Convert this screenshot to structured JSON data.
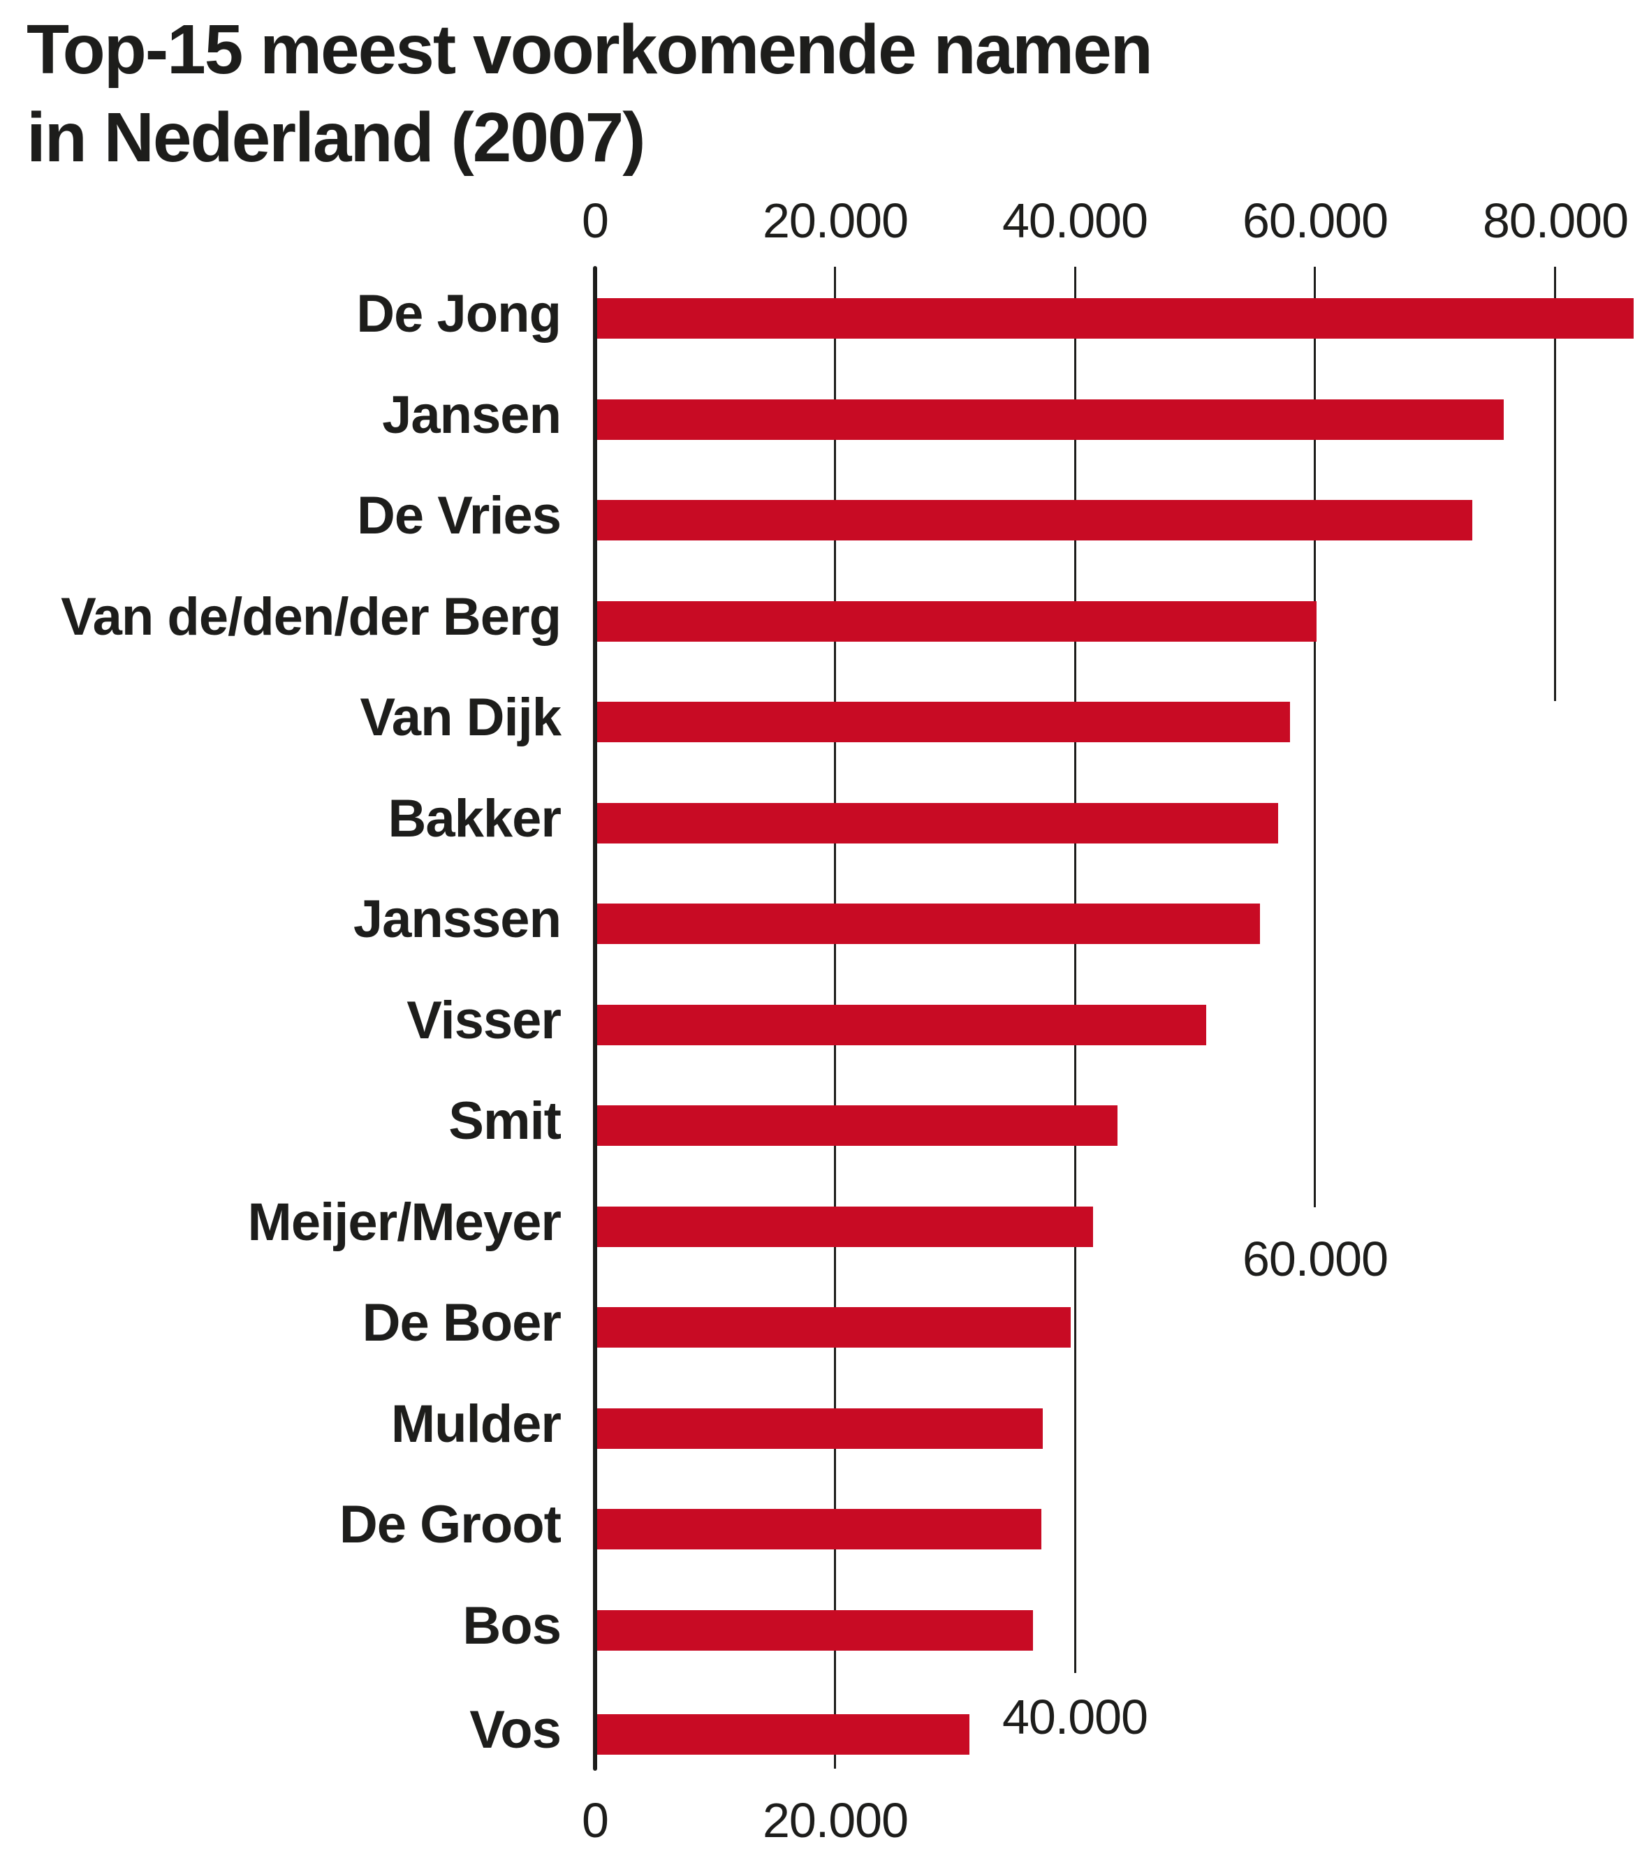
{
  "title": {
    "line1": "Top-15 meest voorkomende namen",
    "line2": "in Nederland (2007)"
  },
  "colors": {
    "bar": "#c80b24",
    "text": "#1d1d1b",
    "grid": "#1d1d1b"
  },
  "axis": {
    "top_ticks": [
      "0",
      "20.000",
      "40.000",
      "60.000",
      "80.000"
    ],
    "inline_ticks": {
      "t60": "60.000",
      "t40": "40.000"
    },
    "bottom_ticks": [
      "0",
      "20.000"
    ]
  },
  "chart_data": {
    "type": "bar",
    "orientation": "horizontal",
    "title": "Top-15 meest voorkomende namen in Nederland (2007)",
    "xlabel": "",
    "ylabel": "",
    "xlim": [
      0,
      87000
    ],
    "xticks": [
      0,
      20000,
      40000,
      60000,
      80000
    ],
    "xtick_labels": [
      "0",
      "20.000",
      "40.000",
      "60.000",
      "80.000"
    ],
    "grid": true,
    "legend": null,
    "categories": [
      "De Jong",
      "Jansen",
      "De Vries",
      "Van de/den/der Berg",
      "Van Dijk",
      "Bakker",
      "Janssen",
      "Visser",
      "Smit",
      "Meijer/Meyer",
      "De Boer",
      "Mulder",
      "De Groot",
      "Bos",
      "Vos"
    ],
    "values": [
      86500,
      75700,
      73100,
      60100,
      57900,
      56900,
      55400,
      50900,
      43500,
      41500,
      39600,
      37300,
      37200,
      36500,
      31200
    ]
  }
}
